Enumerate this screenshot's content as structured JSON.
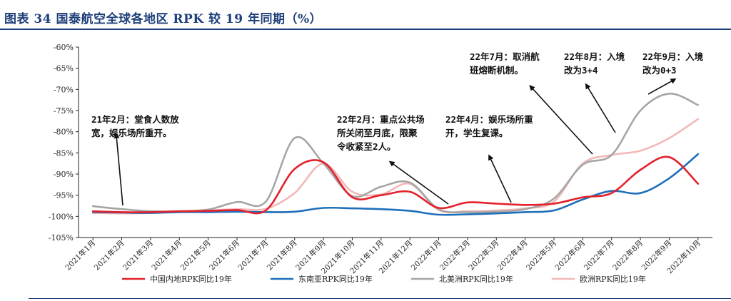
{
  "title": "图表 34  国泰航空全球各地区 RPK 较 19 年同期（%）",
  "chart_data": {
    "type": "line",
    "ylim": [
      -105,
      -60
    ],
    "yticks": [
      -60,
      -65,
      -70,
      -75,
      -80,
      -85,
      -90,
      -95,
      -100,
      -105
    ],
    "ytick_labels": [
      "-60%",
      "-65%",
      "-70%",
      "-75%",
      "-80%",
      "-85%",
      "-90%",
      "-95%",
      "-100%",
      "-105%"
    ],
    "categories": [
      "2021年1月",
      "2021年2月",
      "2021年3月",
      "2021年4月",
      "2021年5月",
      "2021年6月",
      "2021年7月",
      "2021年8月",
      "2021年9月",
      "2021年10月",
      "2021年11月",
      "2021年12月",
      "2022年1月",
      "2022年2月",
      "2022年3月",
      "2022年4月",
      "2022年5月",
      "2022年6月",
      "2022年7月",
      "2022年8月",
      "2022年9月",
      "2022年10月"
    ],
    "series": [
      {
        "name": "中国内地RPK同比19年",
        "color": "#e3212b",
        "values": [
          -98.8,
          -99.0,
          -99.0,
          -98.8,
          -98.7,
          -98.5,
          -98.6,
          -88.8,
          -87.2,
          -95.5,
          -95.0,
          -94.2,
          -98.0,
          -96.7,
          -97.0,
          -97.3,
          -97.0,
          -95.5,
          -94.5,
          -89.0,
          -86.0,
          -92.3
        ]
      },
      {
        "name": "东南亚RPK同比19年",
        "color": "#1f6fba",
        "values": [
          -99.0,
          -99.1,
          -99.2,
          -99.0,
          -99.0,
          -98.9,
          -99.0,
          -98.9,
          -98.0,
          -98.1,
          -98.3,
          -98.7,
          -99.6,
          -99.5,
          -99.3,
          -99.0,
          -98.6,
          -96.0,
          -94.0,
          -94.5,
          -91.0,
          -85.3
        ]
      },
      {
        "name": "北美洲RPK同比19年",
        "color": "#a6a6a6",
        "values": [
          -97.6,
          -98.3,
          -98.8,
          -98.8,
          -98.4,
          -96.6,
          -96.5,
          -81.5,
          -87.5,
          -95.2,
          -93.0,
          -92.0,
          -98.3,
          -99.0,
          -98.9,
          -98.3,
          -95.8,
          -87.8,
          -85.5,
          -75.0,
          -71.0,
          -73.7
        ]
      },
      {
        "name": "欧洲RPK同比19年",
        "color": "#f2b8b8",
        "values": [
          -99.2,
          -99.3,
          -99.2,
          -98.9,
          -98.6,
          -98.3,
          -98.2,
          -94.5,
          -87.5,
          -94.2,
          -94.8,
          -92.3,
          -98.5,
          -98.8,
          -98.6,
          -98.1,
          -96.5,
          -87.5,
          -85.5,
          -84.5,
          -81.5,
          -77.0
        ]
      }
    ],
    "annotations": [
      {
        "lines": [
          "21年2月：堂食人数放",
          "宽，娱乐场所重开。"
        ]
      },
      {
        "lines": [
          "22年2月：重点公共场",
          "所关闭至月底，限聚",
          "令收紧至2人。"
        ]
      },
      {
        "lines": [
          "22年4月：娱乐场所重",
          "开，学生复课。"
        ]
      },
      {
        "lines": [
          "22年7月：取消航",
          "班熔断机制。"
        ]
      },
      {
        "lines": [
          "22年8月：入境",
          "改为3+4"
        ]
      },
      {
        "lines": [
          "22年9月：入境",
          "改为0+3"
        ]
      }
    ],
    "legend_position": "bottom",
    "grid": false
  }
}
